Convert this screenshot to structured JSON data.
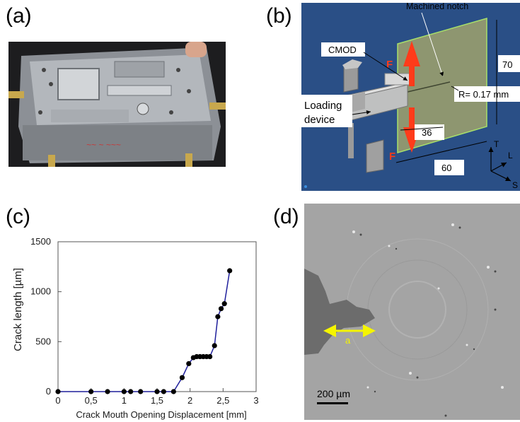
{
  "panels": {
    "a": "(a)",
    "b": "(b)",
    "c": "(c)",
    "d": "(d)"
  },
  "panel_b": {
    "machined_notch": "Machined notch",
    "cmod": "CMOD",
    "force_top": "F",
    "force_bottom": "F",
    "loading_device_line1": "Loading",
    "loading_device_line2": "device",
    "dim_70": "70",
    "radius": "R=  0.17 mm",
    "dim_36": "36",
    "dim_60": "60",
    "axis_t": "T",
    "axis_l": "L",
    "axis_s": "S",
    "colors": {
      "background": "#2a4f86",
      "plate": "#8e9670",
      "force_arrow": "#ff3b1a"
    }
  },
  "panel_d": {
    "crack_label": "a",
    "scale_bar": "200 µm",
    "colors": {
      "background": "#a4a4a4",
      "crack": "#6c6c6c",
      "arrow": "#f5f500"
    }
  },
  "chart_data": {
    "type": "line",
    "xlabel": "Crack Mouth Opening Displacement  [mm]",
    "ylabel": "Crack  length [µm]",
    "xlim": [
      0,
      3
    ],
    "ylim": [
      0,
      1500
    ],
    "x_ticks": [
      "0",
      "0,5",
      "1",
      "1,5",
      "2",
      "2,5",
      "3"
    ],
    "x_tick_values": [
      0,
      0.5,
      1,
      1.5,
      2,
      2.5,
      3
    ],
    "y_ticks": [
      "0",
      "500",
      "1000",
      "1500"
    ],
    "y_tick_values": [
      0,
      500,
      1000,
      1500
    ],
    "grid": false,
    "line_color": "#1f1f9c",
    "marker_color": "#000000",
    "series": [
      {
        "x": [
          0,
          0.5,
          0.75,
          1.0,
          1.1,
          1.25,
          1.5,
          1.6,
          1.75,
          1.88,
          1.98,
          2.05,
          2.1,
          2.15,
          2.2,
          2.25,
          2.3,
          2.37,
          2.42,
          2.47,
          2.52,
          2.6
        ],
        "y": [
          0,
          0,
          0,
          0,
          0,
          0,
          0,
          0,
          0,
          140,
          280,
          340,
          350,
          350,
          350,
          350,
          350,
          460,
          750,
          830,
          880,
          1210
        ]
      }
    ]
  }
}
